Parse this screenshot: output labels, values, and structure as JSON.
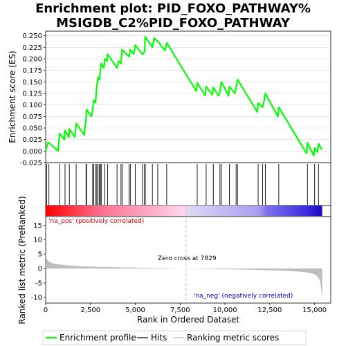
{
  "title_line1": "Enrichment plot: PID_FOXO_PATHWAY%",
  "title_line2": "MSIGDB_C2%PID_FOXO_PATHWAY",
  "colors": {
    "enrichment": "#00ff00",
    "hits": "#000000",
    "metric_fill": "#bebebe",
    "pos_label": "#cc0000",
    "neg_label": "#0000cc",
    "zero_line": "#aaaaaa"
  },
  "chart_data": [
    {
      "type": "line",
      "name": "enrichment-profile",
      "ylabel": "Enrichment score (ES)",
      "xlim": [
        0,
        15900
      ],
      "ylim": [
        -0.025,
        0.26
      ],
      "yticks": [
        "-0.025",
        "0.000",
        "0.025",
        "0.050",
        "0.075",
        "0.100",
        "0.125",
        "0.150",
        "0.175",
        "0.200",
        "0.225",
        "0.250"
      ],
      "ytick_values": [
        -0.025,
        0.0,
        0.025,
        0.05,
        0.075,
        0.1,
        0.125,
        0.15,
        0.175,
        0.2,
        0.225,
        0.25
      ],
      "x": [
        0,
        120,
        180,
        700,
        780,
        1050,
        1080,
        1300,
        1320,
        1630,
        1700,
        2150,
        2250,
        2280,
        2550,
        2620,
        2680,
        2780,
        2850,
        2920,
        3000,
        3050,
        3100,
        3250,
        3300,
        3420,
        3450,
        3980,
        4060,
        4200,
        4260,
        4650,
        4720,
        4900,
        5000,
        5080,
        5400,
        5520,
        5550,
        5950,
        6050,
        6250,
        6650,
        6750,
        8400,
        8450,
        8900,
        8950,
        9300,
        9350,
        9650,
        9720,
        9800,
        10200,
        10250,
        10550,
        10620,
        10700,
        11800,
        11850,
        12100,
        12200,
        12250,
        12950,
        13000,
        14550,
        14600,
        14950,
        15000,
        15150,
        15220,
        15400
      ],
      "y": [
        0.0,
        0.018,
        0.018,
        0.0,
        0.038,
        0.025,
        0.045,
        0.03,
        0.048,
        0.03,
        0.06,
        0.035,
        0.07,
        0.09,
        0.075,
        0.09,
        0.11,
        0.105,
        0.14,
        0.16,
        0.155,
        0.175,
        0.19,
        0.18,
        0.2,
        0.195,
        0.21,
        0.18,
        0.195,
        0.19,
        0.22,
        0.205,
        0.22,
        0.21,
        0.23,
        0.225,
        0.21,
        0.215,
        0.248,
        0.225,
        0.245,
        0.238,
        0.218,
        0.235,
        0.13,
        0.148,
        0.12,
        0.14,
        0.122,
        0.138,
        0.12,
        0.13,
        0.15,
        0.12,
        0.14,
        0.125,
        0.138,
        0.155,
        0.085,
        0.104,
        0.095,
        0.112,
        0.125,
        0.075,
        0.095,
        -0.005,
        0.018,
        -0.01,
        0.007,
        -0.002,
        0.016,
        0.003
      ]
    },
    {
      "type": "scatter",
      "name": "hits",
      "x": [
        60,
        180,
        780,
        1080,
        1320,
        1700,
        2250,
        2280,
        2620,
        2680,
        2780,
        2850,
        2920,
        3000,
        3050,
        3100,
        3300,
        3450,
        3980,
        4200,
        4260,
        4650,
        4720,
        5000,
        5400,
        5520,
        5550,
        5950,
        6250,
        6750,
        8450,
        8950,
        9350,
        9720,
        9800,
        10250,
        10620,
        10700,
        11850,
        12100,
        12250,
        13000,
        14600,
        15000,
        15220
      ]
    },
    {
      "type": "area",
      "name": "ranking-metric",
      "ylabel": "Ranked list metric (PreRanked)",
      "xlabel": "Rank in Ordered Dataset",
      "xlim": [
        0,
        15900
      ],
      "ylim": [
        -12,
        18
      ],
      "yticks": [
        "15",
        "10",
        "5",
        "0",
        "-5",
        "-10"
      ],
      "ytick_values": [
        15,
        10,
        5,
        0,
        -5,
        -10
      ],
      "xticks": [
        "0",
        "2,500",
        "5,000",
        "7,500",
        "10,000",
        "12,500",
        "15,000"
      ],
      "xtick_values": [
        0,
        2500,
        5000,
        7500,
        10000,
        12500,
        15000
      ],
      "x": [
        0,
        50,
        150,
        300,
        600,
        1000,
        2000,
        3000,
        5000,
        7000,
        7829,
        9000,
        11000,
        13000,
        14000,
        14500,
        14900,
        15100,
        15250,
        15320,
        15380,
        15420
      ],
      "y": [
        6.0,
        3.5,
        2.6,
        2.0,
        1.5,
        1.2,
        0.8,
        0.55,
        0.3,
        0.1,
        0.0,
        -0.15,
        -0.35,
        -0.7,
        -1.0,
        -1.3,
        -1.8,
        -2.4,
        -3.5,
        -5.0,
        -8.0,
        -11.0
      ],
      "zero_cross_label": "Zero cross at 7829",
      "zero_cross_x": 7829,
      "pos_label": "'na_pos' (positively correlated)",
      "neg_label": "'na_neg' (negatively correlated)"
    }
  ],
  "legend": {
    "items": [
      {
        "label": "Enrichment profile"
      },
      {
        "label": "Hits"
      },
      {
        "label": "Ranking metric scores"
      }
    ]
  }
}
